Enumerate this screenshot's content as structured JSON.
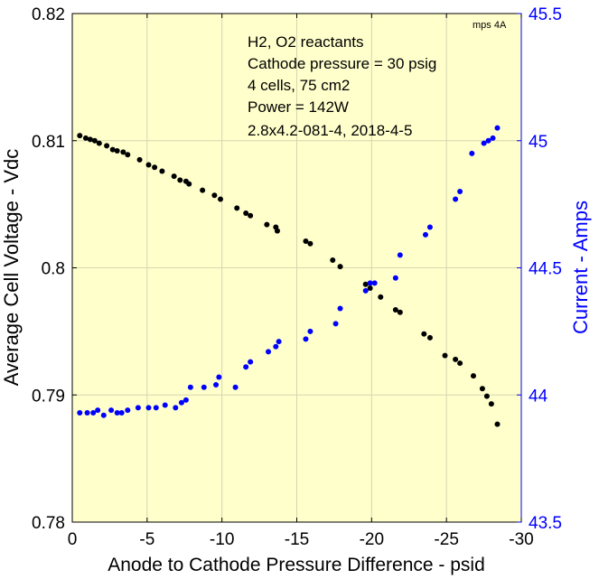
{
  "chart_data": {
    "type": "scatter",
    "tag": "mps 4A",
    "annotations": [
      "H2, O2 reactants",
      "Cathode pressure = 30 psig",
      "4 cells, 75 cm2",
      "Power = 142W",
      "2.8x4.2-081-4,  2018-4-5"
    ],
    "xlabel": "Anode to Cathode Pressure Difference - psid",
    "ylabel_left": "Average Cell Voltage - Vdc",
    "ylabel_right": "Current - Amps",
    "xlim": [
      0,
      -30
    ],
    "ylim_left": [
      0.78,
      0.82
    ],
    "ylim_right": [
      43.5,
      45.5
    ],
    "xticks": [
      0,
      -5,
      -10,
      -15,
      -20,
      -25,
      -30
    ],
    "xtick_labels": [
      "0",
      "-5",
      "-10",
      "-15",
      "-20",
      "-25",
      "-30"
    ],
    "yticks_left": [
      0.78,
      0.79,
      0.8,
      0.81,
      0.82
    ],
    "ytick_labels_left": [
      "0.78",
      "0.79",
      "0.8",
      "0.81",
      "0.82"
    ],
    "yticks_right": [
      43.5,
      44,
      44.5,
      45,
      45.5
    ],
    "ytick_labels_right": [
      "43.5",
      "44",
      "44.5",
      "45",
      "45.5"
    ],
    "grid": true,
    "background_color": "#ffffcc",
    "series": [
      {
        "axis": "left",
        "color": "#000000",
        "x": [
          -0.5,
          -0.9,
          -1.2,
          -1.5,
          -1.8,
          -2.3,
          -2.7,
          -3.0,
          -3.4,
          -3.7,
          -4.5,
          -5.1,
          -5.5,
          -6.0,
          -6.8,
          -7.2,
          -7.6,
          -7.8,
          -8.7,
          -9.5,
          -9.9,
          -11.0,
          -11.6,
          -11.9,
          -13.0,
          -13.6,
          -13.7,
          -15.6,
          -15.9,
          -17.4,
          -17.9,
          -19.6,
          -19.9,
          -20.6,
          -21.6,
          -21.9,
          -23.5,
          -23.9,
          -24.9,
          -25.6,
          -25.9,
          -26.8,
          -27.4,
          -27.7,
          -28.0,
          -28.4
        ],
        "y": [
          0.8104,
          0.8102,
          0.8101,
          0.81,
          0.8098,
          0.8096,
          0.8093,
          0.8092,
          0.8091,
          0.8089,
          0.8085,
          0.8081,
          0.8079,
          0.8076,
          0.8072,
          0.8069,
          0.8068,
          0.8066,
          0.8061,
          0.8057,
          0.8054,
          0.8047,
          0.8043,
          0.8041,
          0.8034,
          0.8032,
          0.8029,
          0.8021,
          0.8019,
          0.8006,
          0.8001,
          0.7987,
          0.7984,
          0.7977,
          0.7967,
          0.7965,
          0.7948,
          0.7945,
          0.7931,
          0.7928,
          0.7925,
          0.7915,
          0.7905,
          0.7899,
          0.7893,
          0.7877
        ]
      },
      {
        "axis": "right",
        "color": "#0000ff",
        "x": [
          -0.5,
          -1.0,
          -1.4,
          -1.7,
          -2.1,
          -2.6,
          -3.0,
          -3.3,
          -3.7,
          -4.4,
          -5.1,
          -5.6,
          -6.2,
          -6.9,
          -7.3,
          -7.6,
          -7.9,
          -8.8,
          -9.6,
          -9.8,
          -10.9,
          -11.6,
          -11.9,
          -13.1,
          -13.6,
          -13.8,
          -15.6,
          -15.9,
          -17.6,
          -17.9,
          -19.6,
          -19.9,
          -20.2,
          -21.6,
          -21.9,
          -23.6,
          -23.9,
          -25.6,
          -25.9,
          -26.7,
          -27.5,
          -27.8,
          -28.1,
          -28.4
        ],
        "y": [
          43.93,
          43.93,
          43.93,
          43.94,
          43.92,
          43.94,
          43.93,
          43.93,
          43.94,
          43.95,
          43.95,
          43.95,
          43.96,
          43.95,
          43.97,
          43.98,
          44.03,
          44.03,
          44.04,
          44.07,
          44.03,
          44.11,
          44.13,
          44.17,
          44.19,
          44.21,
          44.22,
          44.25,
          44.28,
          44.34,
          44.41,
          44.44,
          44.44,
          44.46,
          44.55,
          44.63,
          44.66,
          44.77,
          44.8,
          44.95,
          44.99,
          45.0,
          45.01,
          45.05
        ]
      }
    ]
  }
}
